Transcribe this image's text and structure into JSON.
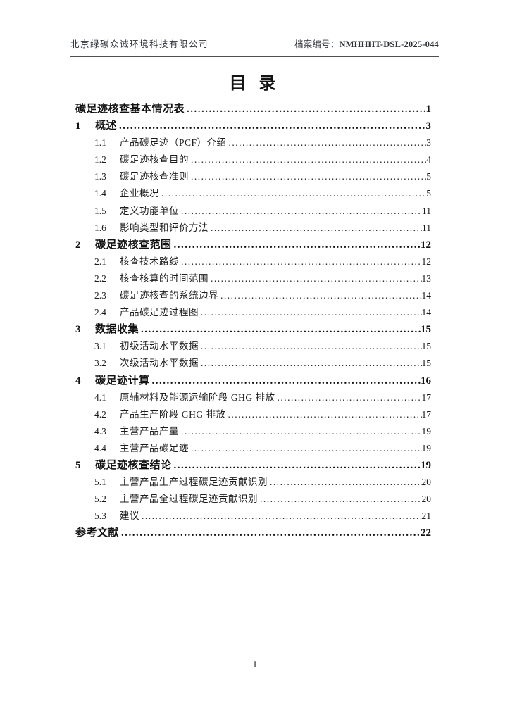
{
  "header": {
    "company": "北京绿碳众诚环境科技有限公司",
    "archive_label": "档案编号：",
    "archive_number": "NMHHHT-DSL-2025-044"
  },
  "title": "目 录",
  "toc": {
    "entries": [
      {
        "level": 0,
        "num": "",
        "title": "碳足迹核查基本情况表",
        "page": "1",
        "bold": true
      },
      {
        "level": 1,
        "num": "1",
        "title": "概述",
        "page": "3",
        "bold": true
      },
      {
        "level": 2,
        "num": "1.1",
        "title": "产品碳足迹（PCF）介绍",
        "page": "3",
        "bold": false
      },
      {
        "level": 2,
        "num": "1.2",
        "title": "碳足迹核查目的",
        "page": "4",
        "bold": false
      },
      {
        "level": 2,
        "num": "1.3",
        "title": "碳足迹核查准则",
        "page": "5",
        "bold": false
      },
      {
        "level": 2,
        "num": "1.4",
        "title": "企业概况",
        "page": "5",
        "bold": false
      },
      {
        "level": 2,
        "num": "1.5",
        "title": "定义功能单位",
        "page": "11",
        "bold": false
      },
      {
        "level": 2,
        "num": "1.6",
        "title": "影响类型和评价方法",
        "page": "11",
        "bold": false
      },
      {
        "level": 1,
        "num": "2",
        "title": "碳足迹核查范围",
        "page": "12",
        "bold": true
      },
      {
        "level": 2,
        "num": "2.1",
        "title": "核查技术路线",
        "page": "12",
        "bold": false
      },
      {
        "level": 2,
        "num": "2.2",
        "title": "核查核算的时间范围",
        "page": "13",
        "bold": false
      },
      {
        "level": 2,
        "num": "2.3",
        "title": "碳足迹核查的系统边界",
        "page": "14",
        "bold": false
      },
      {
        "level": 2,
        "num": "2.4",
        "title": "产品碳足迹过程图",
        "page": "14",
        "bold": false
      },
      {
        "level": 1,
        "num": "3",
        "title": "数据收集",
        "page": "15",
        "bold": true
      },
      {
        "level": 2,
        "num": "3.1",
        "title": "初级活动水平数据",
        "page": "15",
        "bold": false
      },
      {
        "level": 2,
        "num": "3.2",
        "title": "次级活动水平数据",
        "page": "15",
        "bold": false
      },
      {
        "level": 1,
        "num": "4",
        "title": "碳足迹计算",
        "page": "16",
        "bold": true
      },
      {
        "level": 2,
        "num": "4.1",
        "title": "原辅材料及能源运输阶段 GHG 排放",
        "page": "17",
        "bold": false
      },
      {
        "level": 2,
        "num": "4.2",
        "title": "产品生产阶段 GHG 排放",
        "page": "17",
        "bold": false
      },
      {
        "level": 2,
        "num": "4.3",
        "title": "主营产品产量",
        "page": "19",
        "bold": false
      },
      {
        "level": 2,
        "num": "4.4",
        "title": "主营产品碳足迹",
        "page": "19",
        "bold": false
      },
      {
        "level": 1,
        "num": "5",
        "title": "碳足迹核查结论",
        "page": "19",
        "bold": true
      },
      {
        "level": 2,
        "num": "5.1",
        "title": "主营产品生产过程碳足迹贡献识别",
        "page": "20",
        "bold": false
      },
      {
        "level": 2,
        "num": "5.2",
        "title": "主营产品全过程碳足迹贡献识别",
        "page": "20",
        "bold": false
      },
      {
        "level": 2,
        "num": "5.3",
        "title": "建议",
        "page": "21",
        "bold": false
      },
      {
        "level": 0,
        "num": "",
        "title": "参考文献",
        "page": "22",
        "bold": true
      }
    ]
  },
  "footer": {
    "page_number": "I"
  },
  "colors": {
    "page_background": "#ffffff",
    "body_text": "#1a1a1a",
    "header_rule": "#4c4f57"
  }
}
